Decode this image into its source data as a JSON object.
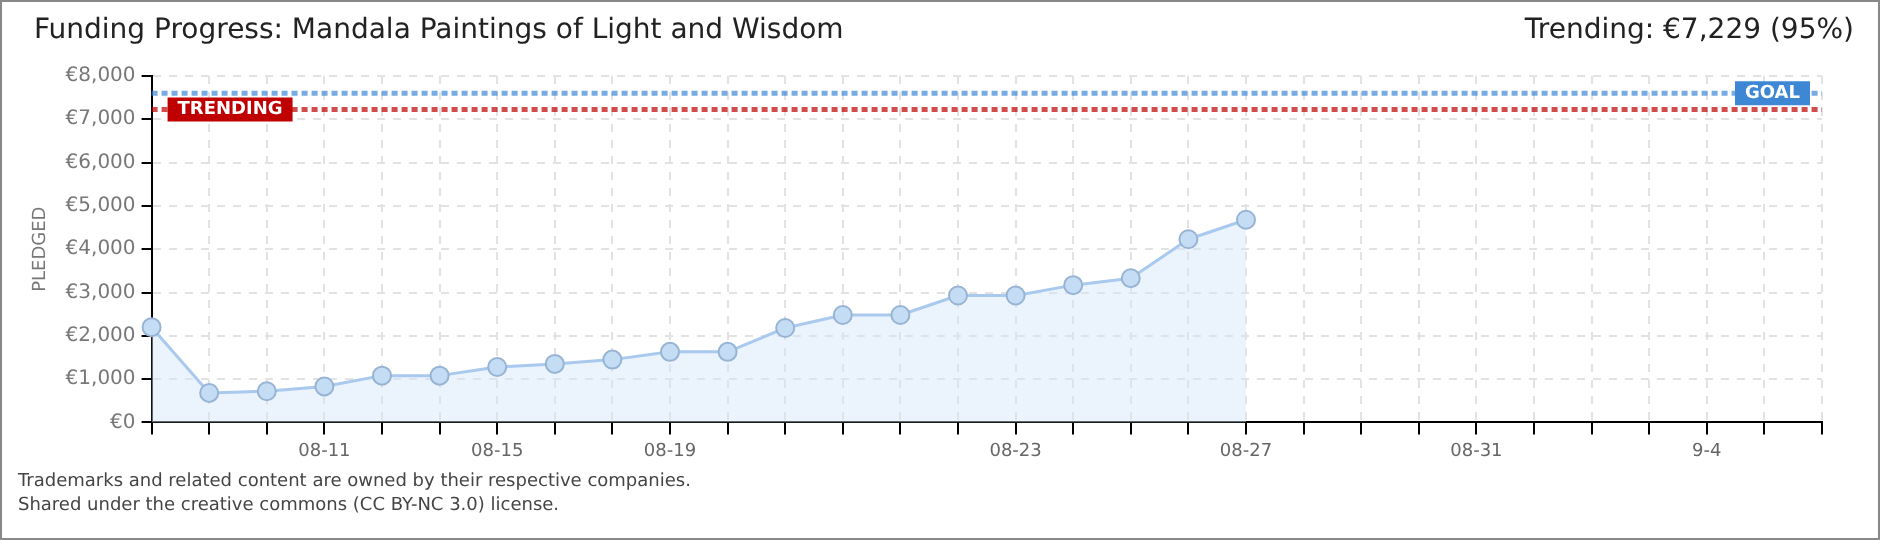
{
  "chart_data": {
    "type": "area",
    "title": "Funding Progress: Mandala Paintings of Light and Wisdom",
    "subtitle": "Trending: €7,229 (95%)",
    "ylabel": "PLEDGED",
    "categories": [
      null,
      null,
      null,
      "08-11",
      null,
      null,
      "08-15",
      null,
      null,
      "08-19",
      null,
      null,
      null,
      null,
      null,
      "08-23",
      null,
      null,
      null,
      "08-27",
      null,
      null,
      null,
      "08-31",
      null,
      null,
      null,
      "9-4",
      null,
      null
    ],
    "series": [
      {
        "color": "#a9c9ee",
        "values": [
          2200,
          680,
          720,
          830,
          1080,
          1080,
          1280,
          1350,
          1450,
          1630,
          1630,
          2180,
          2480,
          2480,
          2930,
          2930,
          3170,
          3330,
          4230,
          4680,
          null,
          null,
          null,
          null,
          null,
          null,
          null,
          null,
          null,
          null
        ]
      }
    ],
    "ylim": [
      0,
      8000
    ],
    "yticks": [
      {
        "value": 0,
        "label": "€0"
      },
      {
        "value": 1000,
        "label": "€1,000"
      },
      {
        "value": 2000,
        "label": "€2,000"
      },
      {
        "value": 3000,
        "label": "€3,000"
      },
      {
        "value": 4000,
        "label": "€4,000"
      },
      {
        "value": 5000,
        "label": "€5,000"
      },
      {
        "value": 6000,
        "label": "€6,000"
      },
      {
        "value": 7000,
        "label": "€7,000"
      },
      {
        "value": 8000,
        "label": "€8,000"
      }
    ],
    "ref_lines": [
      {
        "axis": "y",
        "value": 7600,
        "label": "GOAL",
        "color": "#3d87d4",
        "line_style": "dotted"
      },
      {
        "axis": "y",
        "value": 7229,
        "label": "TRENDING",
        "color": "#c00000",
        "line_style": "dotted"
      }
    ],
    "grid": true,
    "legend": false,
    "marker": "circle",
    "line_style": "solid",
    "annotations": [
      "Trademarks and related content are owned by their respective companies.",
      "Shared under the creative commons (CC BY-NC 3.0) license."
    ]
  }
}
